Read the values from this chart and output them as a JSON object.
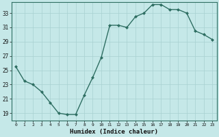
{
  "x": [
    0,
    1,
    2,
    3,
    4,
    5,
    6,
    7,
    8,
    9,
    10,
    11,
    12,
    13,
    14,
    15,
    16,
    17,
    18,
    19,
    20,
    21,
    22,
    23
  ],
  "y": [
    25.5,
    23.5,
    23.0,
    22.0,
    20.5,
    19.0,
    18.8,
    18.8,
    21.5,
    24.0,
    26.8,
    31.3,
    31.3,
    31.0,
    32.5,
    33.0,
    34.2,
    34.2,
    33.5,
    33.5,
    33.0,
    30.5,
    30.0,
    29.3
  ],
  "xlabel": "Humidex (Indice chaleur)",
  "line_color": "#2e6e62",
  "bg_color": "#c5e8e8",
  "grid_color": "#a8d0d0",
  "ylim": [
    18.0,
    34.5
  ],
  "yticks": [
    19,
    21,
    23,
    25,
    27,
    29,
    31,
    33
  ],
  "xticks": [
    0,
    1,
    2,
    3,
    4,
    5,
    6,
    7,
    8,
    9,
    10,
    11,
    12,
    13,
    14,
    15,
    16,
    17,
    18,
    19,
    20,
    21,
    22,
    23
  ]
}
